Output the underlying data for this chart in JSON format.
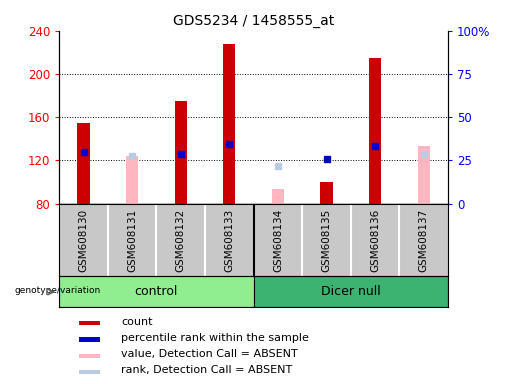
{
  "title": "GDS5234 / 1458555_at",
  "samples": [
    "GSM608130",
    "GSM608131",
    "GSM608132",
    "GSM608133",
    "GSM608134",
    "GSM608135",
    "GSM608136",
    "GSM608137"
  ],
  "count_values": [
    155,
    null,
    175,
    228,
    null,
    100,
    215,
    null
  ],
  "percentile_rank": [
    128,
    null,
    126,
    135,
    null,
    121,
    133,
    null
  ],
  "absent_value": [
    null,
    124,
    null,
    null,
    93,
    null,
    null,
    133
  ],
  "absent_rank": [
    null,
    124,
    null,
    null,
    115,
    null,
    null,
    126
  ],
  "ylim_left": [
    80,
    240
  ],
  "ylim_right": [
    0,
    100
  ],
  "yticks_left": [
    80,
    120,
    160,
    200,
    240
  ],
  "yticks_right": [
    0,
    25,
    50,
    75,
    100
  ],
  "group_label": "genotype/variation",
  "control_label": "control",
  "dicer_label": "Dicer null",
  "light_green": "#90EE90",
  "dark_green": "#32CD32",
  "gray_bg": "#C8C8C8",
  "count_color": "#CC0000",
  "pct_color": "#0000CC",
  "absent_val_color": "#FFB6C1",
  "absent_rank_color": "#B8CCE4",
  "legend_labels": [
    "count",
    "percentile rank within the sample",
    "value, Detection Call = ABSENT",
    "rank, Detection Call = ABSENT"
  ],
  "legend_colors": [
    "#CC0000",
    "#0000CC",
    "#FFB6C1",
    "#B8CCE4"
  ]
}
